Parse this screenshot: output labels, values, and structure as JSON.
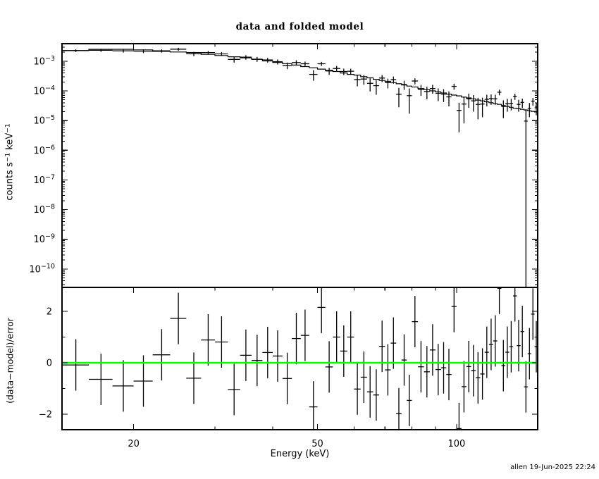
{
  "window": {
    "background": "#ffffff",
    "foreground": "#000000"
  },
  "title": "data and folded model",
  "footer": "allen 19-Jun-2025 22:24",
  "chart_data": {
    "type": "line",
    "subtype": "xspec_two_panel_spectrum",
    "x": {
      "label": "Energy (keV)",
      "scale": "log",
      "lim": [
        14.0,
        149.8
      ],
      "major_ticks": [
        20,
        50,
        100
      ],
      "minor_ticks": [
        30,
        40,
        60,
        70,
        80,
        90
      ]
    },
    "top_panel": {
      "ylabel": "counts s^−1 keV^−1",
      "yscale": "log",
      "ylim_log10": [
        -10.62,
        -2.41
      ],
      "ytick_exponents": [
        -3,
        -4,
        -5,
        -6,
        -7,
        -8,
        -9,
        -10
      ]
    },
    "bottom_panel": {
      "ylabel": "(data−model)/error",
      "yscale": "linear",
      "ylim": [
        -2.6,
        2.93
      ],
      "major_ticks": [
        -2,
        0,
        2
      ],
      "minor_ticks": [
        -1,
        1
      ],
      "residual_error": 1,
      "zero_line_color": "#00ff00"
    },
    "series": [
      {
        "name": "data",
        "style": "cross_with_errors",
        "color": "#000000"
      },
      {
        "name": "folded model",
        "style": "histogram",
        "color": "#000000"
      }
    ],
    "bins_columns": [
      "e_lo_keV",
      "e_hi_keV",
      "model",
      "data",
      "error"
    ],
    "bins": [
      [
        14,
        16,
        0.00229,
        0.00227,
        0.00024
      ],
      [
        16,
        18,
        0.00251,
        0.00233,
        0.00028
      ],
      [
        18,
        20,
        0.00251,
        0.00224,
        0.0003
      ],
      [
        20,
        22,
        0.0024,
        0.00218,
        0.00031
      ],
      [
        22,
        24,
        0.00214,
        0.00223,
        0.00029
      ],
      [
        24,
        26,
        0.00204,
        0.00254,
        0.00029
      ],
      [
        26,
        28,
        0.00195,
        0.00177,
        0.0003
      ],
      [
        28,
        30,
        0.0017,
        0.00194,
        0.00027
      ],
      [
        30,
        32,
        0.00155,
        0.00176,
        0.00026
      ],
      [
        32,
        34,
        0.00141,
        0.00115,
        0.00025
      ],
      [
        34,
        36,
        0.00129,
        0.00136,
        0.00024
      ],
      [
        36,
        38,
        0.00115,
        0.00117,
        0.00022
      ],
      [
        38,
        40,
        0.00102,
        0.0011,
        0.0002
      ],
      [
        40,
        42,
        0.00091,
        0.00096,
        0.00019
      ],
      [
        42,
        44,
        0.00083,
        0.00072,
        0.00018
      ],
      [
        44,
        46,
        0.00074,
        0.0009,
        0.00017
      ],
      [
        46,
        48,
        0.00066,
        0.00082,
        0.00015
      ],
      [
        48,
        50,
        0.0006,
        0.00036,
        0.00014
      ],
      [
        50,
        52,
        0.00054,
        0.00082,
        0.00013
      ],
      [
        52,
        54,
        0.00049,
        0.00047,
        0.000125
      ],
      [
        54,
        56,
        0.00045,
        0.00057,
        0.00012
      ],
      [
        56,
        58,
        0.0004,
        0.00045,
        0.00011
      ],
      [
        58,
        60,
        0.00036,
        0.00046,
        0.0001
      ],
      [
        60,
        62,
        0.00034,
        0.00024,
        9.8e-05
      ],
      [
        62,
        64,
        0.0003,
        0.00025,
        8.9e-05
      ],
      [
        64,
        66,
        0.000275,
        0.00018,
        8.4e-05
      ],
      [
        66,
        68,
        0.000245,
        0.00015,
        7.6e-05
      ],
      [
        68,
        70,
        0.000224,
        0.00027,
        7.2e-05
      ],
      [
        70,
        72,
        0.000209,
        0.00019,
        6.9e-05
      ],
      [
        72,
        74,
        0.000191,
        0.00024,
        6.4e-05
      ],
      [
        74,
        76,
        0.000174,
        7.7e-05,
        4.9e-05
      ],
      [
        76,
        78,
        0.000158,
        0.000164,
        5.6e-05
      ],
      [
        78,
        80,
        0.000145,
        6.9e-05,
        5.2e-05
      ],
      [
        80,
        82.5,
        0.000135,
        0.000215,
        5e-05
      ],
      [
        82.5,
        85,
        0.00012,
        0.000113,
        4.5e-05
      ],
      [
        85,
        87.5,
        0.00011,
        9.5e-05,
        4.3e-05
      ],
      [
        87.5,
        90,
        0.0001,
        0.00012,
        4e-05
      ],
      [
        90,
        92.5,
        9.3e-05,
        8.3e-05,
        3.8e-05
      ],
      [
        92.5,
        95,
        8.5e-05,
        7.8e-05,
        3.6e-05
      ],
      [
        95,
        97.5,
        7.8e-05,
        6.3e-05,
        3.3e-05
      ],
      [
        97.5,
        100,
        7.2e-05,
        0.000142,
        3.2e-05
      ],
      [
        100,
        102.5,
        6.8e-05,
        2.2e-05,
        1.8e-05
      ],
      [
        102.5,
        105,
        6.2e-05,
        3.6e-05,
        2.8e-05
      ],
      [
        105,
        107.5,
        5.8e-05,
        5.4e-05,
        2.7e-05
      ],
      [
        107.5,
        110,
        5.4e-05,
        4.6e-05,
        2.6e-05
      ],
      [
        110,
        112.5,
        4.9e-05,
        3.5e-05,
        2.4e-05
      ],
      [
        112.5,
        115,
        4.6e-05,
        3.6e-05,
        2.3e-05
      ],
      [
        115,
        117.5,
        4.3e-05,
        5.2e-05,
        2.2e-05
      ],
      [
        117.5,
        120,
        4e-05,
        5.5e-05,
        2.1e-05
      ],
      [
        120,
        122.5,
        3.7e-05,
        5.4e-05,
        2e-05
      ],
      [
        122.5,
        125,
        3.5e-05,
        9e-05,
        1.9e-05
      ],
      [
        125,
        127.5,
        3.2e-05,
        3e-05,
        1.8e-05
      ],
      [
        127.5,
        130,
        3e-05,
        3.7e-05,
        1.7e-05
      ],
      [
        130,
        132.5,
        2.8e-05,
        3.8e-05,
        1.6e-05
      ],
      [
        132.5,
        135,
        2.6e-05,
        6.5e-05,
        1.5e-05
      ],
      [
        135,
        137.5,
        2.5e-05,
        3.5e-05,
        1.5e-05
      ],
      [
        137.5,
        140,
        2.4e-05,
        4.1e-05,
        1.4e-05
      ],
      [
        140,
        142.5,
        2.27e-05,
        9.6e-06,
        1.4e-05
      ],
      [
        142.5,
        145,
        2.14e-05,
        2.6e-05,
        1.3e-05
      ],
      [
        145,
        147.5,
        2.04e-05,
        4.5e-05,
        1.3e-05
      ],
      [
        147.5,
        150,
        1.95e-05,
        2.7e-05,
        1.2e-05
      ]
    ]
  }
}
